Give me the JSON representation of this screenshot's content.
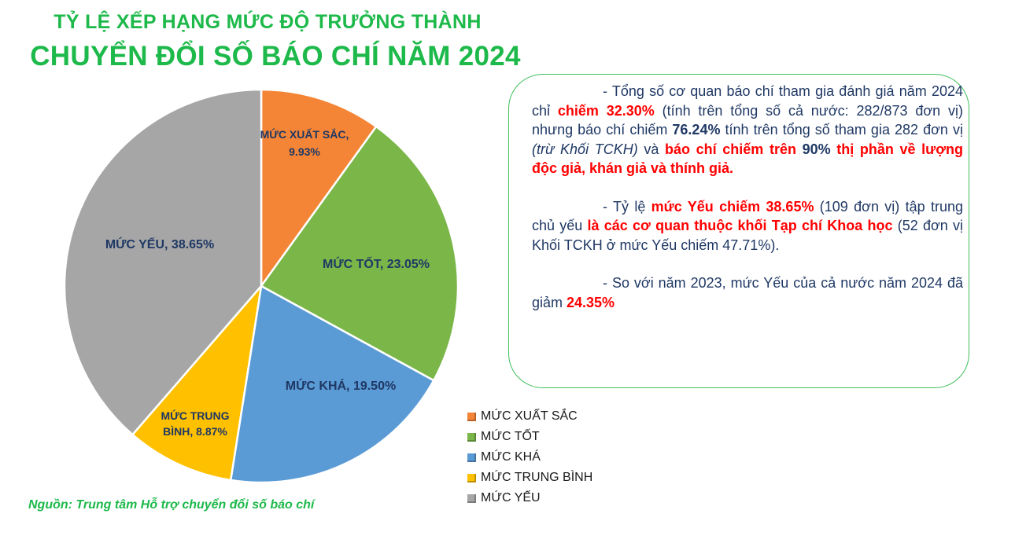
{
  "header": {
    "title_line1": "TỶ LỆ XẾP HẠNG MỨC ĐỘ TRƯỞNG THÀNH",
    "title_line2": "CHUYỂN ĐỔI SỐ BÁO CHÍ NĂM 2024"
  },
  "chart_data": {
    "type": "pie",
    "title": "",
    "legend_position": "bottom-right",
    "slices": [
      {
        "name": "MỨC XUẤT SẮC",
        "value": 9.93,
        "label_line1": "MỨC XUẤT SẮC,",
        "label_line2": "9.93%",
        "color": "#f58536"
      },
      {
        "name": "MỨC TỐT",
        "value": 23.05,
        "label_line1": "MỨC TỐT, 23.05%",
        "label_line2": "",
        "color": "#7ab648"
      },
      {
        "name": "MỨC KHÁ",
        "value": 19.5,
        "label_line1": "MỨC KHÁ, 19.50%",
        "label_line2": "",
        "color": "#5b9bd5"
      },
      {
        "name": "MỨC TRUNG BÌNH",
        "value": 8.87,
        "label_line1": "MỨC TRUNG",
        "label_line2": "BÌNH, 8.87%",
        "color": "#ffc000"
      },
      {
        "name": "MỨC YẾU",
        "value": 38.65,
        "label_line1": "MỨC YẾU, 38.65%",
        "label_line2": "",
        "color": "#a6a6a6"
      }
    ]
  },
  "note": {
    "p1": {
      "t1": "- Tổng số cơ quan báo chí tham gia đánh giá năm 2024 chỉ ",
      "t2": "chiếm 32.30%",
      "t3": " (tính trên tổng số cả nước: 282/873 đơn vị) nhưng báo chí chiếm ",
      "t4": "76.24%",
      "t5": " tính trên tổng số tham gia 282 đơn vị ",
      "t6": "(trừ Khối TCKH)",
      "t7": " và ",
      "t8": "báo chí chiếm trên ",
      "t9": "90%",
      "t10": " thị phần về lượng độc giả, khán giả và thính giả."
    },
    "p2": {
      "t1": "- Tỷ lệ ",
      "t2": "mức Yếu chiếm 38.65%",
      "t3": " (109 đơn vị) tập trung chủ yếu ",
      "t4": "là các cơ quan thuộc khối Tạp chí Khoa học",
      "t5": " (52 đơn vị Khối TCKH ở mức Yếu chiếm 47.71%)."
    },
    "p3": {
      "t1": "- So với năm 2023, mức Yếu của cả nước năm 2024 đã giảm ",
      "t2": "24.35%"
    }
  },
  "source": "Nguồn: Trung tâm Hỗ trợ chuyển đổi số báo chí"
}
